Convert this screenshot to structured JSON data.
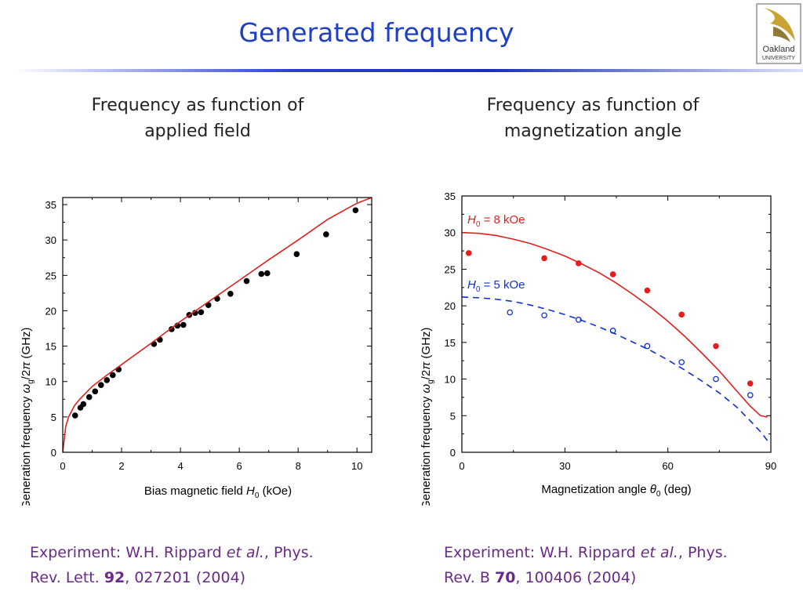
{
  "slide": {
    "title": "Generated frequency",
    "subheads": {
      "left": [
        "Frequency as function of",
        "applied field"
      ],
      "right": [
        "Frequency as function of",
        "magnetization angle"
      ]
    },
    "references": {
      "left": {
        "prefix": "Experiment: W.H. Rippard ",
        "etal": "et al.",
        "journal": ", Phys.",
        "line2_pre": "Rev. Lett. ",
        "volume": "92",
        "line2_post": ", 027201 (2004)"
      },
      "right": {
        "prefix": "Experiment: W.H. Rippard ",
        "etal": "et al.",
        "journal": ", Phys.",
        "line2_pre": "Rev. B ",
        "volume": "70",
        "line2_post": ", 100406 (2004)"
      }
    },
    "logo": {
      "line1": "Oakland",
      "line2": "UNIVERSITY"
    }
  },
  "chart_data": [
    {
      "type": "scatter",
      "xlabel": "Bias magnetic field H0 (kOe)",
      "ylabel": "Generation frequency ωg/2π (GHz)",
      "xlim": [
        0,
        10.5
      ],
      "ylim": [
        0,
        36
      ],
      "xticks": [
        0,
        2,
        4,
        6,
        8,
        10
      ],
      "yticks": [
        0,
        5,
        10,
        15,
        20,
        25,
        30,
        35
      ],
      "series": [
        {
          "kind": "points",
          "color": "#000000",
          "x": [
            0.42,
            0.6,
            0.7,
            0.9,
            1.1,
            1.3,
            1.5,
            1.7,
            1.9,
            3.1,
            3.3,
            3.7,
            3.9,
            4.1,
            4.3,
            4.5,
            4.7,
            4.95,
            5.25,
            5.7,
            6.25,
            6.75,
            6.95,
            7.95,
            8.95,
            9.95
          ],
          "y": [
            5.2,
            6.3,
            6.8,
            7.8,
            8.6,
            9.5,
            10.2,
            10.9,
            11.7,
            15.3,
            15.9,
            17.4,
            17.9,
            18.0,
            19.4,
            19.7,
            19.8,
            20.8,
            21.7,
            22.4,
            24.2,
            25.2,
            25.3,
            28.0,
            30.8,
            34.2
          ]
        },
        {
          "kind": "line",
          "color": "#e02020",
          "x": [
            0,
            0.1,
            0.2,
            0.4,
            0.6,
            1,
            1.5,
            2,
            3,
            4,
            5,
            6,
            7,
            8,
            9,
            10,
            10.5
          ],
          "y": [
            0,
            3.6,
            5.0,
            6.6,
            7.6,
            9.3,
            10.9,
            12.4,
            15.4,
            18.5,
            21.4,
            24.3,
            27.2,
            30.0,
            32.9,
            35.2,
            36.0
          ]
        }
      ]
    },
    {
      "type": "scatter",
      "xlabel": "Magnetization angle θ0 (deg)",
      "ylabel": "Generation frequency ωg/2π (GHz)",
      "xlim": [
        0,
        90
      ],
      "ylim": [
        0,
        35
      ],
      "xticks": [
        0,
        30,
        60,
        90
      ],
      "yticks": [
        0,
        5,
        10,
        15,
        20,
        25,
        30,
        35
      ],
      "series": [
        {
          "name": "H0 = 8 kOe",
          "kind": "points",
          "color": "#e02020",
          "filled": true,
          "x": [
            2,
            24,
            34,
            44,
            54,
            64,
            74,
            84
          ],
          "y": [
            27.2,
            26.5,
            25.8,
            24.3,
            22.1,
            18.8,
            14.5,
            9.4
          ]
        },
        {
          "kind": "line",
          "color": "#e02020",
          "dash": false,
          "x": [
            0,
            5,
            10,
            15,
            20,
            25,
            30,
            35,
            40,
            45,
            50,
            55,
            60,
            65,
            70,
            75,
            80,
            84,
            87,
            89
          ],
          "y": [
            30.0,
            29.9,
            29.6,
            29.1,
            28.5,
            27.7,
            26.8,
            25.7,
            24.5,
            23.1,
            21.5,
            19.8,
            17.9,
            15.8,
            13.5,
            11.1,
            8.4,
            6.3,
            5.0,
            4.8
          ]
        },
        {
          "name": "H0 = 5 kOe",
          "kind": "points",
          "color": "#1030d0",
          "filled": false,
          "x": [
            14,
            24,
            34,
            44,
            54,
            64,
            74,
            84
          ],
          "y": [
            19.1,
            18.7,
            18.1,
            16.6,
            14.5,
            12.3,
            10.0,
            7.8
          ]
        },
        {
          "kind": "line",
          "color": "#1030d0",
          "dash": true,
          "x": [
            0,
            5,
            10,
            15,
            20,
            25,
            30,
            35,
            40,
            45,
            50,
            55,
            60,
            65,
            70,
            75,
            80,
            84,
            87,
            89
          ],
          "y": [
            21.2,
            21.1,
            20.9,
            20.6,
            20.1,
            19.5,
            18.8,
            18.0,
            17.1,
            16.1,
            15.0,
            13.9,
            12.6,
            11.2,
            9.7,
            8.1,
            6.2,
            4.3,
            2.8,
            1.6
          ]
        }
      ]
    }
  ]
}
